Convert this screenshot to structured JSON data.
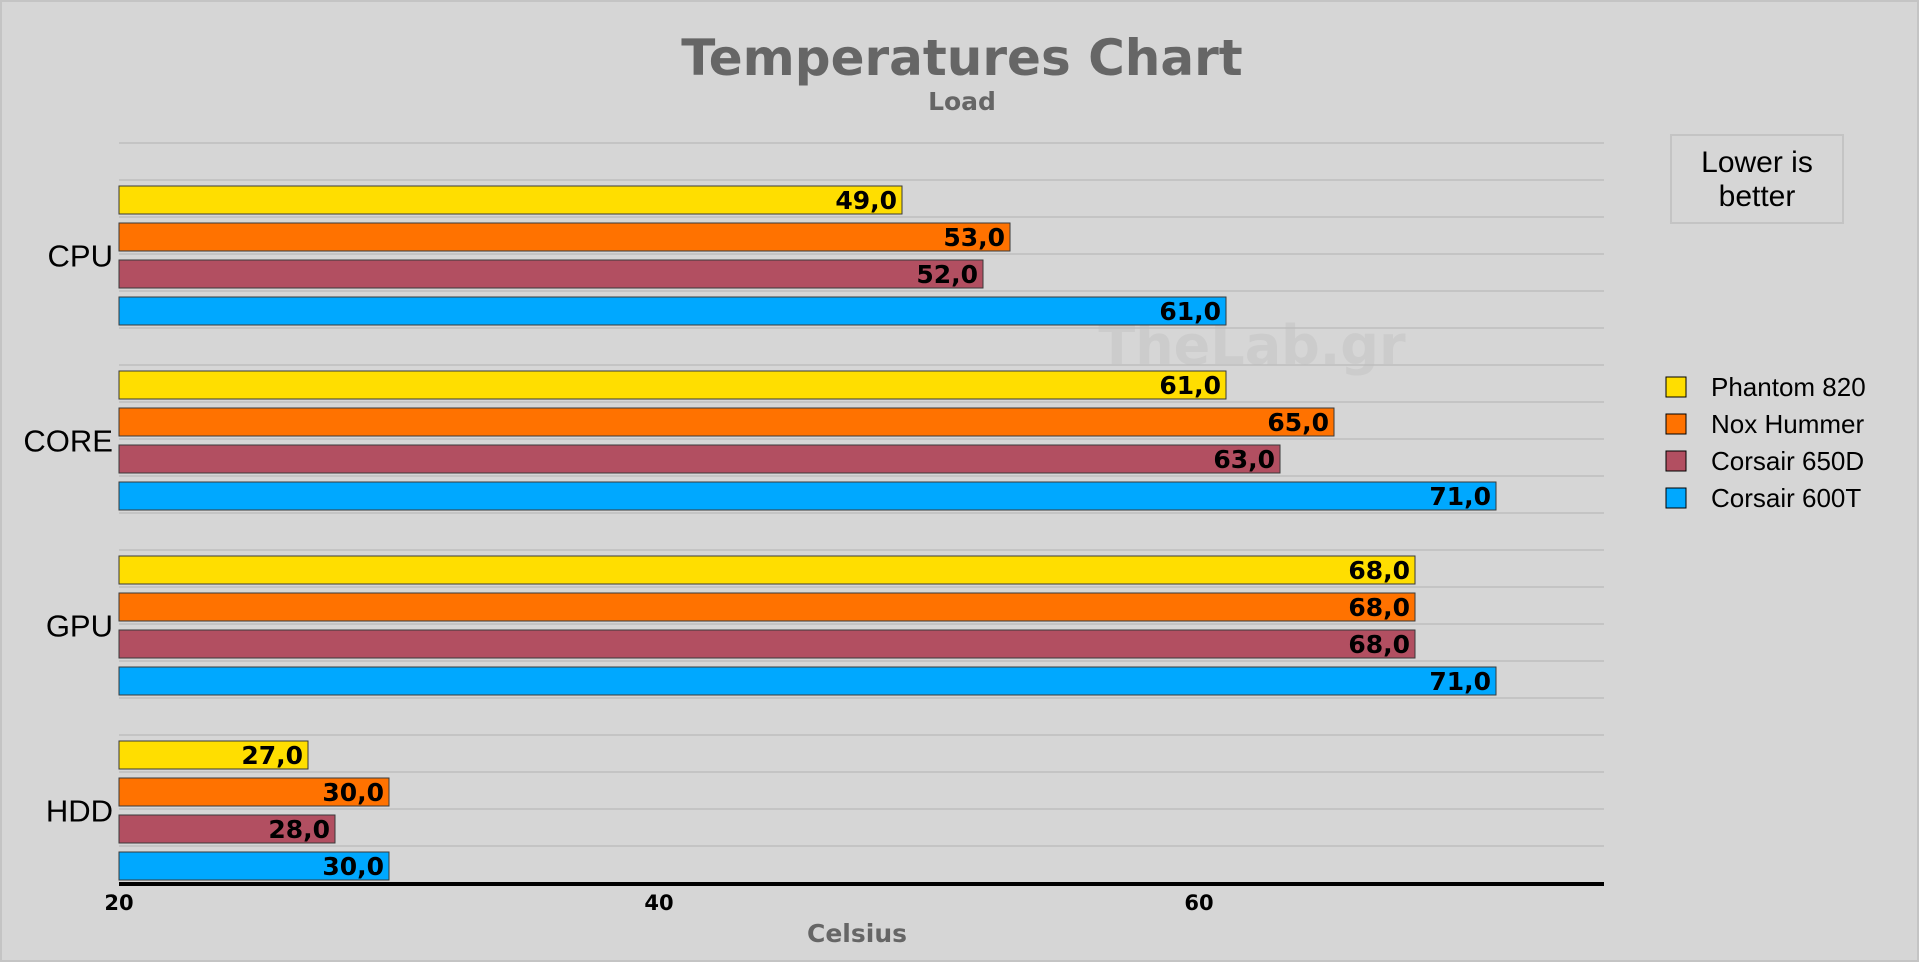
{
  "chart_data": {
    "type": "bar",
    "orientation": "horizontal",
    "title": "Temperatures Chart",
    "subtitle": "Load",
    "xlabel": "Celsius",
    "ylabel": "",
    "xlim": [
      20,
      75
    ],
    "xticks": [
      20,
      40,
      60
    ],
    "tick_labels": [
      "20",
      "40",
      "60"
    ],
    "grid": true,
    "legend_position": "right",
    "note": [
      "Lower is",
      "better"
    ],
    "watermark": "TheLab.gr",
    "categories": [
      "CPU",
      "CORE",
      "GPU",
      "HDD"
    ],
    "series": [
      {
        "name": "Phantom 820",
        "color": "#ffde00",
        "values": [
          49.0,
          61.0,
          68.0,
          27.0
        ],
        "labels": [
          "49,0",
          "61,0",
          "68,0",
          "27,0"
        ]
      },
      {
        "name": "Nox Hummer",
        "color": "#ff7200",
        "values": [
          53.0,
          65.0,
          68.0,
          30.0
        ],
        "labels": [
          "53,0",
          "65,0",
          "68,0",
          "30,0"
        ]
      },
      {
        "name": "Corsair 650D",
        "color": "#b24f61",
        "values": [
          52.0,
          63.0,
          68.0,
          28.0
        ],
        "labels": [
          "52,0",
          "63,0",
          "68,0",
          "28,0"
        ]
      },
      {
        "name": "Corsair 600T",
        "color": "#00a8ff",
        "values": [
          61.0,
          71.0,
          71.0,
          30.0
        ],
        "labels": [
          "61,0",
          "71,0",
          "71,0",
          "30,0"
        ]
      }
    ]
  }
}
